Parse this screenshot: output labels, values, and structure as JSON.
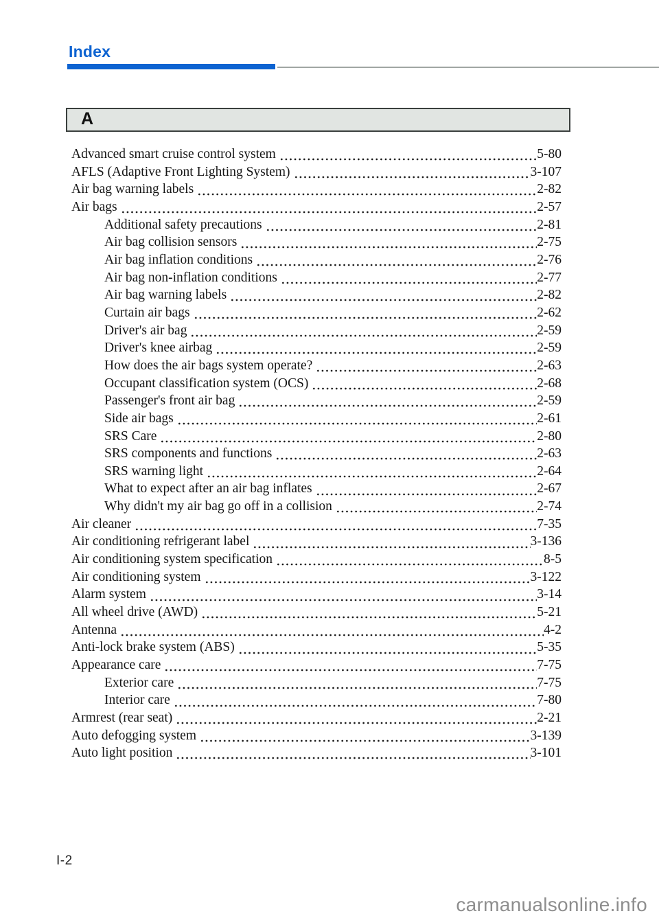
{
  "page": {
    "header_title": "Index",
    "section_letter": "A",
    "page_number": "I-2",
    "watermark": "carmanualsonline.info"
  },
  "colors": {
    "accent_blue": "#0d63d1",
    "rule_gray": "#a0a6a3",
    "section_box_bg": "#e1e5e2",
    "section_box_border": "#3a3f3d",
    "text": "#161616",
    "watermark_gray": "#8d8d8d"
  },
  "index_entries": [
    {
      "label": "Advanced smart cruise control system",
      "page": "5-80",
      "indent": false
    },
    {
      "label": "AFLS (Adaptive Front Lighting System)",
      "page": "3-107",
      "indent": false
    },
    {
      "label": "Air bag warning labels",
      "page": "2-82",
      "indent": false
    },
    {
      "label": "Air bags",
      "page": "2-57",
      "indent": false
    },
    {
      "label": "Additional safety precautions",
      "page": "2-81",
      "indent": true
    },
    {
      "label": "Air bag collision sensors",
      "page": "2-75",
      "indent": true
    },
    {
      "label": "Air bag inflation conditions",
      "page": "2-76",
      "indent": true
    },
    {
      "label": "Air bag non-inflation conditions",
      "page": "2-77",
      "indent": true
    },
    {
      "label": "Air bag warning labels",
      "page": "2-82",
      "indent": true
    },
    {
      "label": "Curtain air bags",
      "page": "2-62",
      "indent": true
    },
    {
      "label": "Driver's air bag",
      "page": "2-59",
      "indent": true
    },
    {
      "label": "Driver's knee airbag",
      "page": "2-59",
      "indent": true
    },
    {
      "label": "How does the air bags system operate?",
      "page": "2-63",
      "indent": true
    },
    {
      "label": "Occupant classification system (OCS)",
      "page": "2-68",
      "indent": true
    },
    {
      "label": "Passenger's front air bag",
      "page": "2-59",
      "indent": true
    },
    {
      "label": "Side air bags",
      "page": "2-61",
      "indent": true
    },
    {
      "label": "SRS Care",
      "page": "2-80",
      "indent": true
    },
    {
      "label": "SRS components and functions",
      "page": "2-63",
      "indent": true
    },
    {
      "label": "SRS warning light",
      "page": "2-64",
      "indent": true
    },
    {
      "label": "What to expect after an air bag inflates",
      "page": "2-67",
      "indent": true
    },
    {
      "label": "Why didn't my air bag go off in a collision",
      "page": "2-74",
      "indent": true
    },
    {
      "label": "Air cleaner",
      "page": "7-35",
      "indent": false
    },
    {
      "label": "Air conditioning refrigerant label",
      "page": "3-136",
      "indent": false
    },
    {
      "label": "Air conditioning system specification",
      "page": "8-5",
      "indent": false
    },
    {
      "label": "Air conditioning system",
      "page": "3-122",
      "indent": false
    },
    {
      "label": "Alarm system",
      "page": "3-14",
      "indent": false
    },
    {
      "label": "All wheel drive (AWD)",
      "page": "5-21",
      "indent": false
    },
    {
      "label": "Antenna",
      "page": "4-2",
      "indent": false
    },
    {
      "label": "Anti-lock brake system (ABS)",
      "page": "5-35",
      "indent": false
    },
    {
      "label": "Appearance care",
      "page": "7-75",
      "indent": false
    },
    {
      "label": "Exterior care",
      "page": "7-75",
      "indent": true
    },
    {
      "label": "Interior care",
      "page": "7-80",
      "indent": true
    },
    {
      "label": "Armrest (rear seat)",
      "page": "2-21",
      "indent": false
    },
    {
      "label": "Auto defogging system",
      "page": "3-139",
      "indent": false
    },
    {
      "label": "Auto light position",
      "page": "3-101",
      "indent": false
    }
  ]
}
